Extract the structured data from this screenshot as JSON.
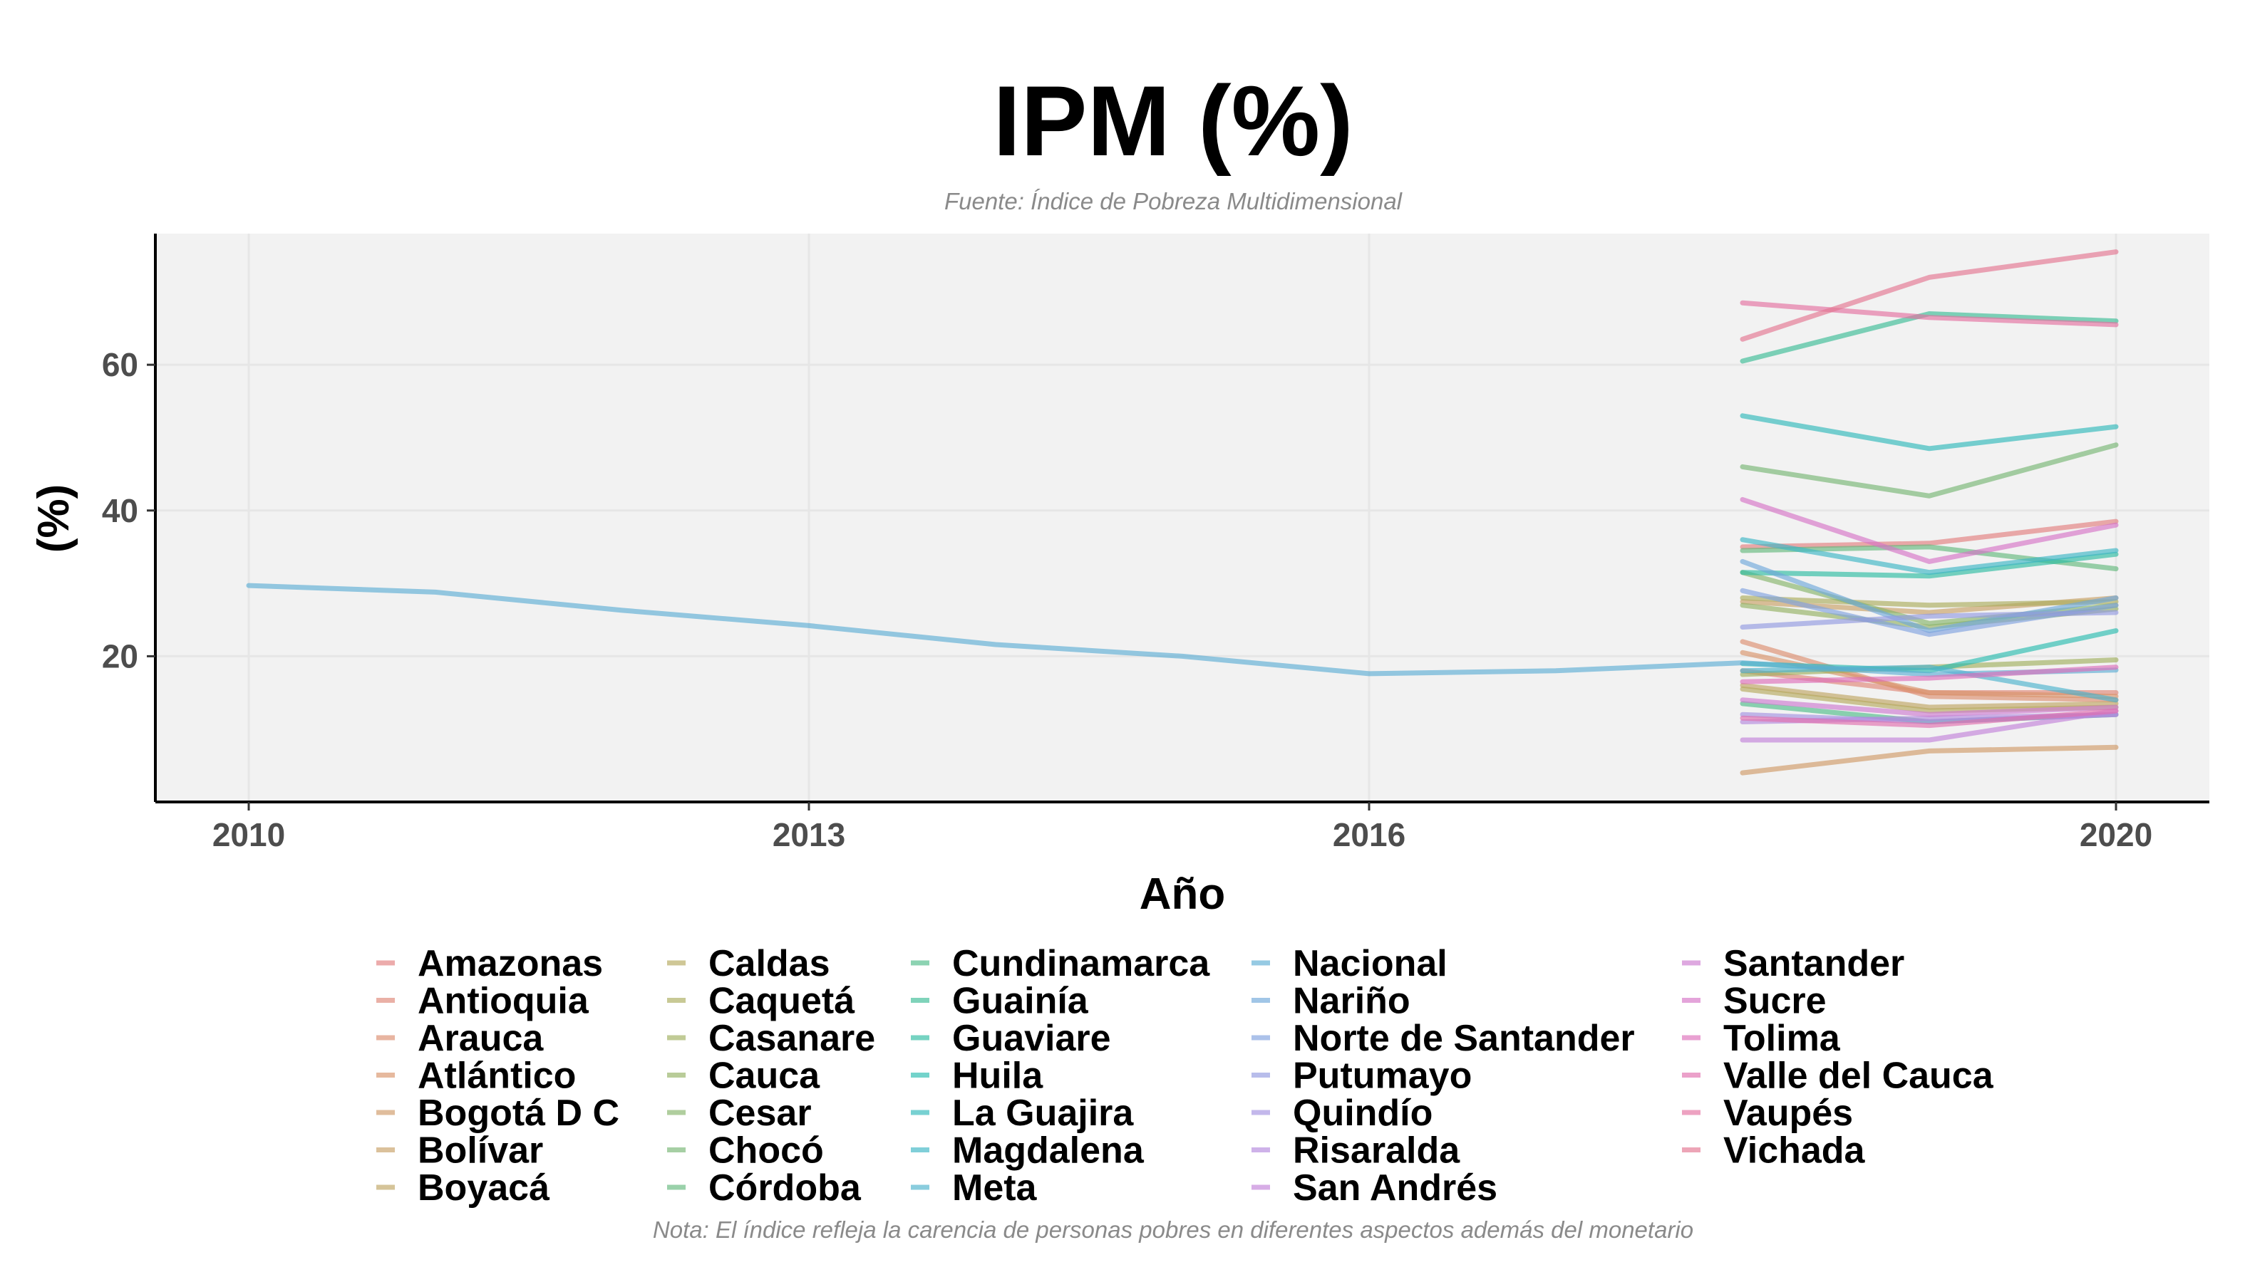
{
  "chart_data": {
    "type": "line",
    "title": "IPM (%)",
    "subtitle": "Fuente: Índice de Pobreza Multidimensional",
    "caption": "Nota: El índice refleja la carencia de personas pobres en diferentes aspectos además del monetario",
    "xlabel": "Año",
    "ylabel": "(%)",
    "xlim": [
      2009.5,
      2020.5
    ],
    "ylim": [
      0,
      78
    ],
    "x_ticks": [
      "2010",
      "2013",
      "2016",
      "2020"
    ],
    "y_ticks": [
      "20",
      "40",
      "60"
    ],
    "grid": true,
    "legend_position": "bottom",
    "series": [
      {
        "name": "Amazonas",
        "color": "#e27e7e",
        "x": [
          2018,
          2019,
          2020
        ],
        "y": [
          35.0,
          35.5,
          38.5
        ]
      },
      {
        "name": "Antioquia",
        "color": "#df8676",
        "x": [
          2018,
          2019,
          2020
        ],
        "y": [
          18.0,
          15.0,
          15.0
        ]
      },
      {
        "name": "Arauca",
        "color": "#dc8d6f",
        "x": [
          2018,
          2019,
          2020
        ],
        "y": [
          22.0,
          14.5,
          14.0
        ]
      },
      {
        "name": "Atlántico",
        "color": "#d8946a",
        "x": [
          2018,
          2019,
          2020
        ],
        "y": [
          20.5,
          15.0,
          14.5
        ]
      },
      {
        "name": "Bogotá D C",
        "color": "#cf9a67",
        "x": [
          2018,
          2019,
          2020
        ],
        "y": [
          4.0,
          7.0,
          7.5
        ]
      },
      {
        "name": "Bolívar",
        "color": "#c7a065",
        "x": [
          2018,
          2019,
          2020
        ],
        "y": [
          27.5,
          26.0,
          28.0
        ]
      },
      {
        "name": "Boyacá",
        "color": "#bea562",
        "x": [
          2018,
          2019,
          2020
        ],
        "y": [
          16.0,
          13.0,
          13.5
        ]
      },
      {
        "name": "Caldas",
        "color": "#b5a95e",
        "x": [
          2018,
          2019,
          2020
        ],
        "y": [
          15.5,
          12.5,
          13.0
        ]
      },
      {
        "name": "Caquetá",
        "color": "#aaac5c",
        "x": [
          2018,
          2019,
          2020
        ],
        "y": [
          28.0,
          27.0,
          27.5
        ]
      },
      {
        "name": "Casanare",
        "color": "#a0af5e",
        "x": [
          2018,
          2019,
          2020
        ],
        "y": [
          17.5,
          18.5,
          19.5
        ]
      },
      {
        "name": "Cauca",
        "color": "#94b162",
        "x": [
          2018,
          2019,
          2020
        ],
        "y": [
          27.0,
          24.0,
          26.5
        ]
      },
      {
        "name": "Cesar",
        "color": "#86b46a",
        "x": [
          2018,
          2019,
          2020
        ],
        "y": [
          31.5,
          24.5,
          27.0
        ]
      },
      {
        "name": "Chocó",
        "color": "#77b673",
        "x": [
          2018,
          2019,
          2020
        ],
        "y": [
          46.0,
          42.0,
          49.0
        ]
      },
      {
        "name": "Córdoba",
        "color": "#64b97c",
        "x": [
          2018,
          2019,
          2020
        ],
        "y": [
          34.5,
          35.0,
          32.0
        ]
      },
      {
        "name": "Cundinamarca",
        "color": "#4fbb88",
        "x": [
          2018,
          2019,
          2020
        ],
        "y": [
          13.5,
          11.0,
          12.0
        ]
      },
      {
        "name": "Guainía",
        "color": "#3bbc95",
        "x": [
          2018,
          2019,
          2020
        ],
        "y": [
          60.5,
          67.0,
          66.0
        ]
      },
      {
        "name": "Guaviare",
        "color": "#2dbca2",
        "x": [
          2018,
          2019,
          2020
        ],
        "y": [
          31.5,
          31.0,
          34.0
        ]
      },
      {
        "name": "Huila",
        "color": "#2abbaf",
        "x": [
          2018,
          2019,
          2020
        ],
        "y": [
          19.0,
          18.0,
          23.5
        ]
      },
      {
        "name": "La Guajira",
        "color": "#30b9ba",
        "x": [
          2018,
          2019,
          2020
        ],
        "y": [
          53.0,
          48.5,
          51.5
        ]
      },
      {
        "name": "Magdalena",
        "color": "#3cb6c4",
        "x": [
          2018,
          2019,
          2020
        ],
        "y": [
          36.0,
          31.5,
          34.5
        ]
      },
      {
        "name": "Meta",
        "color": "#4cb2cd",
        "x": [
          2018,
          2019,
          2020
        ],
        "y": [
          18.0,
          18.5,
          14.0
        ]
      },
      {
        "name": "Nacional",
        "color": "#5eadd4",
        "x": [
          2010,
          2011,
          2012,
          2013,
          2014,
          2015,
          2016,
          2017,
          2018,
          2019,
          2020
        ],
        "y": [
          29.7,
          28.8,
          26.3,
          24.2,
          21.6,
          20.0,
          17.6,
          18.0,
          19.1,
          17.5,
          18.1
        ]
      },
      {
        "name": "Nariño",
        "color": "#6ea8da",
        "x": [
          2018,
          2019,
          2020
        ],
        "y": [
          33.0,
          23.5,
          28.0
        ]
      },
      {
        "name": "Norte de Santander",
        "color": "#80a2de",
        "x": [
          2018,
          2019,
          2020
        ],
        "y": [
          29.0,
          23.0,
          27.0
        ]
      },
      {
        "name": "Putumayo",
        "color": "#929ae0",
        "x": [
          2018,
          2019,
          2020
        ],
        "y": [
          24.0,
          25.5,
          26.0
        ]
      },
      {
        "name": "Quindío",
        "color": "#a392e0",
        "x": [
          2018,
          2019,
          2020
        ],
        "y": [
          12.0,
          11.0,
          12.0
        ]
      },
      {
        "name": "Risaralda",
        "color": "#b389dd",
        "x": [
          2018,
          2019,
          2020
        ],
        "y": [
          11.0,
          11.5,
          12.0
        ]
      },
      {
        "name": "San Andrés",
        "color": "#c181d8",
        "x": [
          2018,
          2019,
          2020
        ],
        "y": [
          8.5,
          8.5,
          12.5
        ]
      },
      {
        "name": "Santander",
        "color": "#cd79d0",
        "x": [
          2018,
          2019,
          2020
        ],
        "y": [
          14.0,
          12.0,
          13.0
        ]
      },
      {
        "name": "Sucre",
        "color": "#d673c6",
        "x": [
          2018,
          2019,
          2020
        ],
        "y": [
          41.5,
          33.0,
          38.0
        ]
      },
      {
        "name": "Tolima",
        "color": "#dd6fba",
        "x": [
          2018,
          2019,
          2020
        ],
        "y": [
          16.5,
          17.0,
          18.5
        ]
      },
      {
        "name": "Valle del Cauca",
        "color": "#e16eae",
        "x": [
          2018,
          2019,
          2020
        ],
        "y": [
          11.5,
          10.5,
          12.5
        ]
      },
      {
        "name": "Vaupés",
        "color": "#e3709f",
        "x": [
          2018,
          2019,
          2020
        ],
        "y": [
          68.5,
          66.5,
          65.5
        ]
      },
      {
        "name": "Vichada",
        "color": "#e47490",
        "x": [
          2018,
          2019,
          2020
        ],
        "y": [
          63.5,
          72.0,
          75.5
        ]
      }
    ]
  }
}
